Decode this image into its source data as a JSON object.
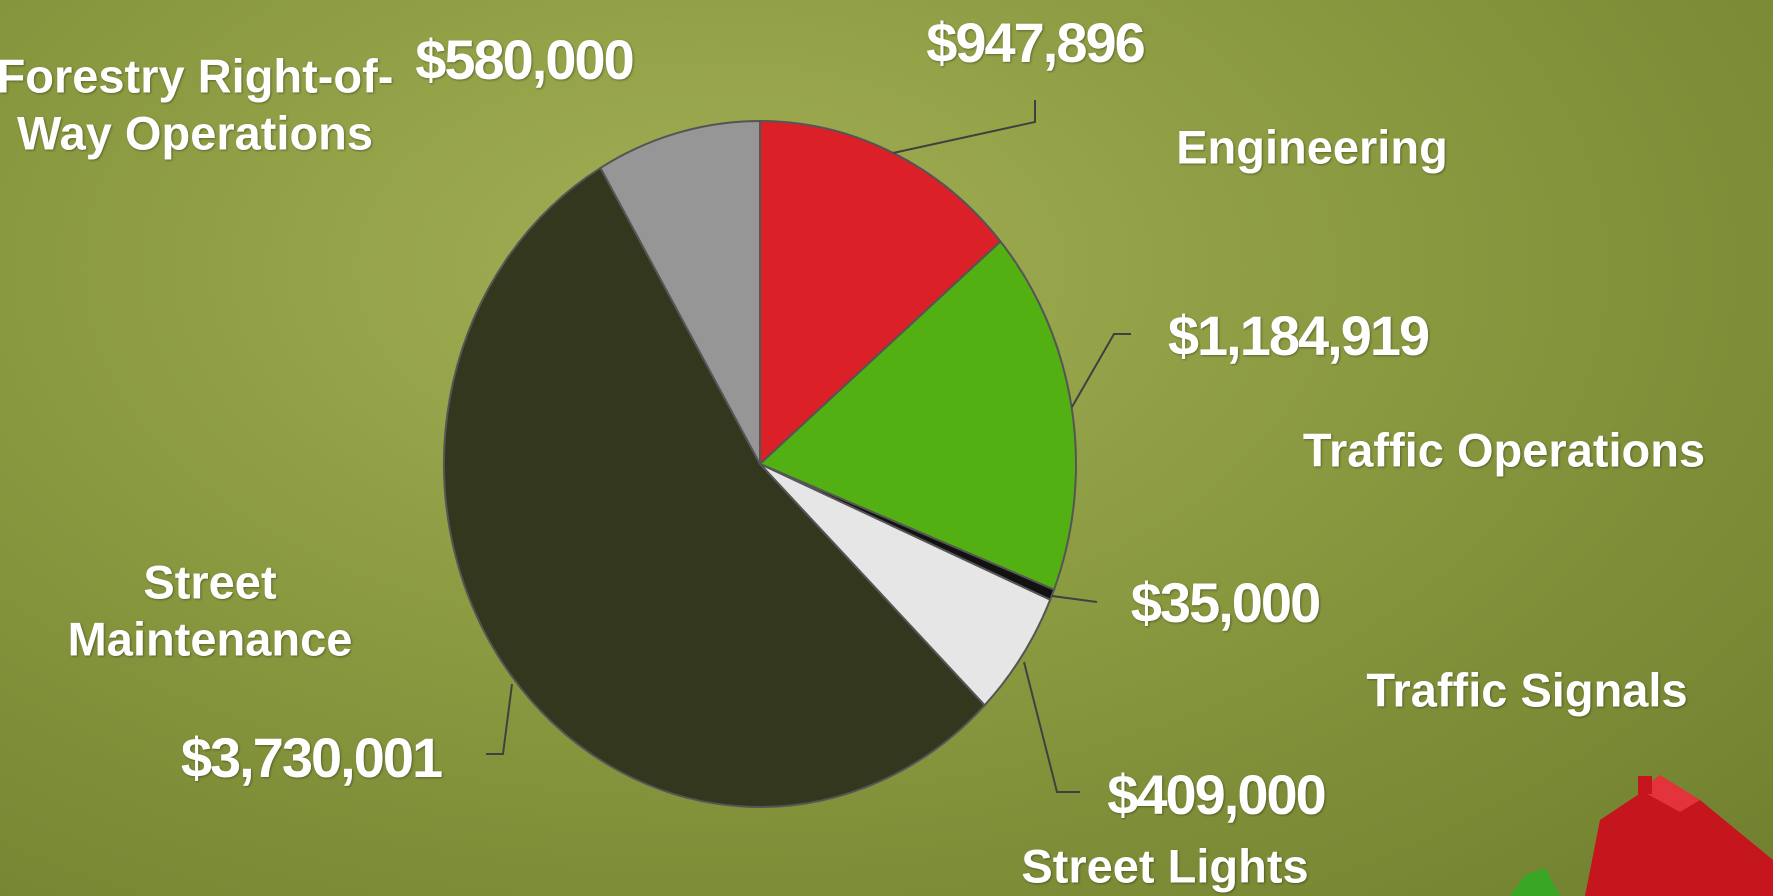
{
  "chart_data": {
    "type": "pie",
    "categories": [
      "Engineering",
      "Traffic Operations",
      "Traffic Signals",
      "Street Lights",
      "Street Maintenance",
      "Forestry Right-of-Way Operations"
    ],
    "values": [
      947896,
      1184919,
      35000,
      409000,
      3730001,
      580000
    ],
    "value_labels": [
      "$947,896",
      "$1,184,919",
      "$35,000",
      "$409,000",
      "$3,730,001",
      "$580,000"
    ],
    "colors": [
      "#dc2027",
      "#52b013",
      "#111111",
      "#e6e6e6",
      "#32371d",
      "#969696"
    ]
  }
}
